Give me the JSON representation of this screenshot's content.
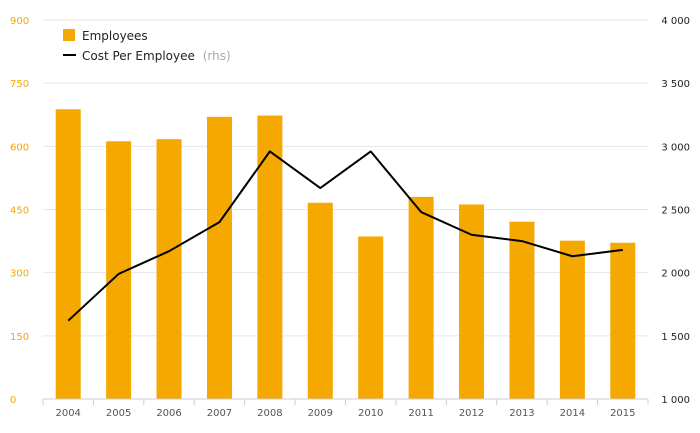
{
  "chart_data": {
    "type": "bar+line",
    "categories": [
      "2004",
      "2005",
      "2006",
      "2007",
      "2008",
      "2009",
      "2010",
      "2011",
      "2012",
      "2013",
      "2014",
      "2015"
    ],
    "series": [
      {
        "name": "Employees",
        "type": "bar",
        "axis": "left",
        "color": "#f5a800",
        "values": [
          688,
          612,
          617,
          670,
          673,
          466,
          386,
          480,
          462,
          421,
          376,
          371
        ]
      },
      {
        "name": "Cost Per Employee",
        "name_suffix": "(rhs)",
        "type": "line",
        "axis": "right",
        "color": "#000000",
        "values": [
          1620,
          1990,
          2170,
          2400,
          2960,
          2670,
          2960,
          2480,
          2300,
          2250,
          2130,
          2180
        ]
      }
    ],
    "y_left": {
      "min": 0,
      "max": 900,
      "ticks": [
        "0",
        "150",
        "300",
        "450",
        "600",
        "750",
        "900"
      ]
    },
    "y_right": {
      "min": 1000,
      "max": 4000,
      "ticks": [
        "1 000",
        "1 500",
        "2 000",
        "2 500",
        "3 000",
        "3 500",
        "4 000"
      ]
    },
    "grid": true,
    "legend_position": "top-left"
  }
}
